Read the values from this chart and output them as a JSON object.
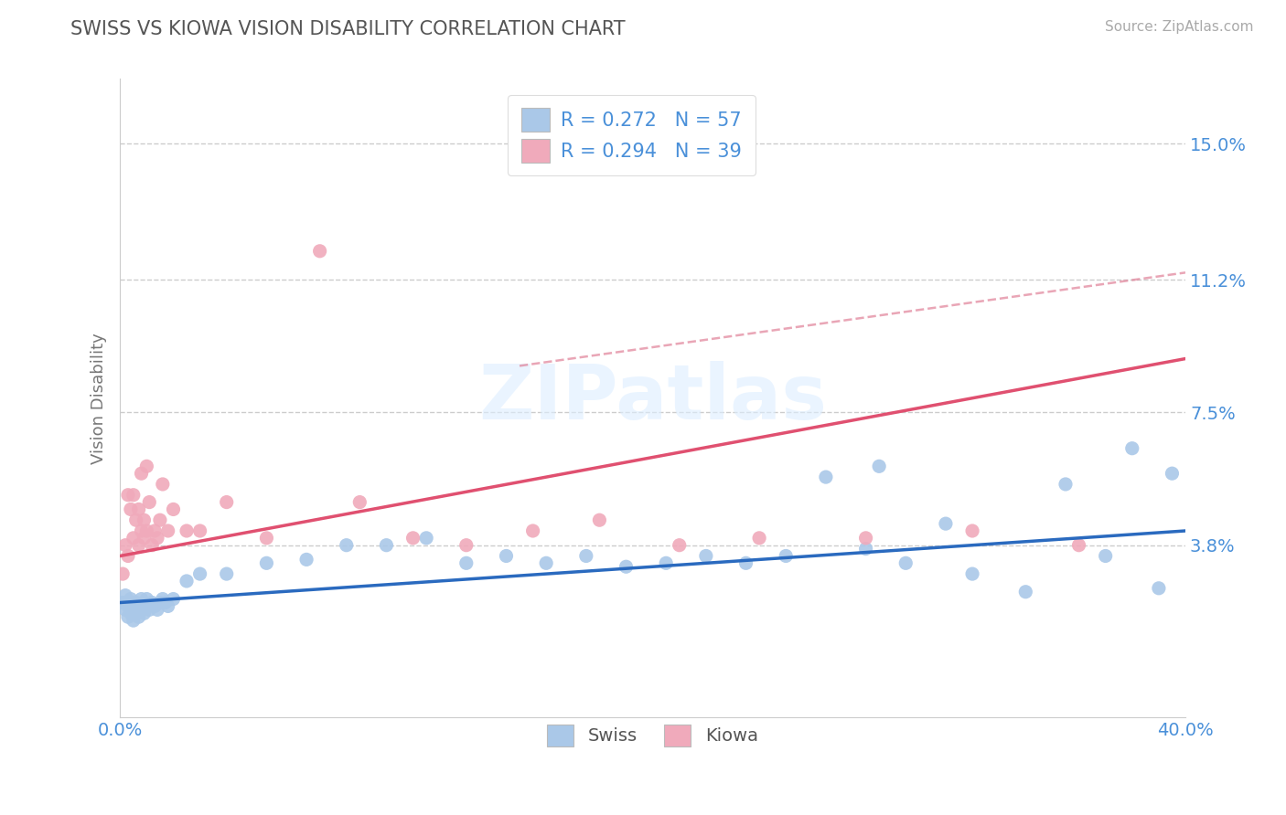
{
  "title": "SWISS VS KIOWA VISION DISABILITY CORRELATION CHART",
  "source": "Source: ZipAtlas.com",
  "ylabel": "Vision Disability",
  "xlim": [
    0.0,
    0.4
  ],
  "ylim": [
    -0.01,
    0.168
  ],
  "xticks": [
    0.0,
    0.4
  ],
  "xticklabels": [
    "0.0%",
    "40.0%"
  ],
  "yticks": [
    0.038,
    0.075,
    0.112,
    0.15
  ],
  "yticklabels": [
    "3.8%",
    "7.5%",
    "11.2%",
    "15.0%"
  ],
  "grid_color": "#cccccc",
  "background_color": "#ffffff",
  "watermark": "ZIPatlas",
  "swiss_color": "#aac8e8",
  "kiowa_color": "#f0aabb",
  "swiss_line_color": "#2a6abf",
  "kiowa_line_color": "#e05070",
  "tick_color": "#4a90d9",
  "swiss_R": 0.272,
  "swiss_N": 57,
  "kiowa_R": 0.294,
  "kiowa_N": 39,
  "swiss_scatter_x": [
    0.001,
    0.002,
    0.002,
    0.003,
    0.003,
    0.004,
    0.004,
    0.005,
    0.005,
    0.006,
    0.006,
    0.007,
    0.007,
    0.008,
    0.008,
    0.009,
    0.009,
    0.01,
    0.01,
    0.011,
    0.012,
    0.013,
    0.014,
    0.015,
    0.016,
    0.017,
    0.018,
    0.02,
    0.025,
    0.03,
    0.04,
    0.055,
    0.07,
    0.085,
    0.1,
    0.115,
    0.13,
    0.145,
    0.16,
    0.175,
    0.19,
    0.205,
    0.22,
    0.235,
    0.25,
    0.265,
    0.28,
    0.295,
    0.32,
    0.34,
    0.355,
    0.37,
    0.38,
    0.39,
    0.395,
    0.285,
    0.31
  ],
  "swiss_scatter_y": [
    0.022,
    0.02,
    0.024,
    0.018,
    0.021,
    0.019,
    0.023,
    0.017,
    0.022,
    0.02,
    0.022,
    0.018,
    0.021,
    0.02,
    0.023,
    0.019,
    0.022,
    0.021,
    0.023,
    0.02,
    0.022,
    0.021,
    0.02,
    0.022,
    0.023,
    0.022,
    0.021,
    0.023,
    0.028,
    0.03,
    0.03,
    0.033,
    0.034,
    0.038,
    0.038,
    0.04,
    0.033,
    0.035,
    0.033,
    0.035,
    0.032,
    0.033,
    0.035,
    0.033,
    0.035,
    0.057,
    0.037,
    0.033,
    0.03,
    0.025,
    0.055,
    0.035,
    0.065,
    0.026,
    0.058,
    0.06,
    0.044
  ],
  "kiowa_scatter_x": [
    0.001,
    0.002,
    0.003,
    0.003,
    0.004,
    0.005,
    0.005,
    0.006,
    0.007,
    0.007,
    0.008,
    0.008,
    0.009,
    0.009,
    0.01,
    0.01,
    0.011,
    0.012,
    0.013,
    0.014,
    0.015,
    0.016,
    0.018,
    0.02,
    0.025,
    0.03,
    0.04,
    0.055,
    0.075,
    0.09,
    0.11,
    0.13,
    0.155,
    0.18,
    0.21,
    0.24,
    0.28,
    0.32,
    0.36
  ],
  "kiowa_scatter_y": [
    0.03,
    0.038,
    0.035,
    0.052,
    0.048,
    0.04,
    0.052,
    0.045,
    0.048,
    0.038,
    0.042,
    0.058,
    0.04,
    0.045,
    0.042,
    0.06,
    0.05,
    0.038,
    0.042,
    0.04,
    0.045,
    0.055,
    0.042,
    0.048,
    0.042,
    0.042,
    0.05,
    0.04,
    0.12,
    0.05,
    0.04,
    0.038,
    0.042,
    0.045,
    0.038,
    0.04,
    0.04,
    0.042,
    0.038
  ],
  "swiss_line_x": [
    0.0,
    0.4
  ],
  "swiss_line_y": [
    0.022,
    0.042
  ],
  "kiowa_line_x": [
    0.0,
    0.4
  ],
  "kiowa_line_y": [
    0.035,
    0.09
  ],
  "dashed_line_x": [
    0.15,
    0.4
  ],
  "dashed_line_y": [
    0.088,
    0.114
  ],
  "dashed_color": "#e08098"
}
